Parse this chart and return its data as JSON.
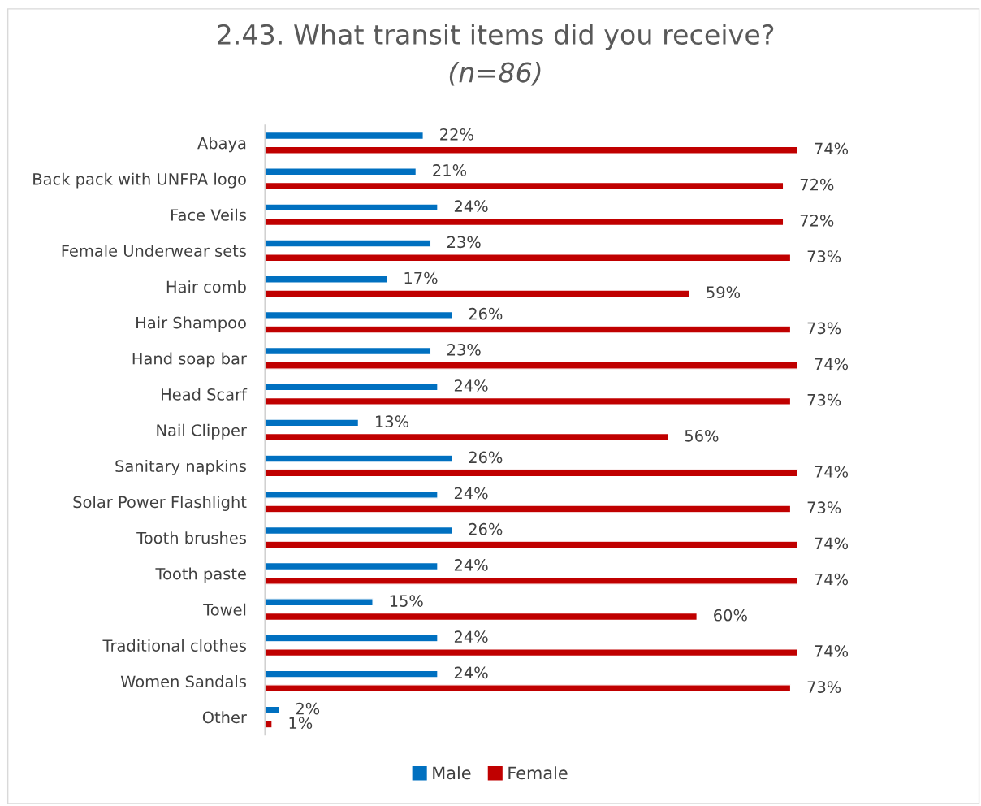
{
  "chart_data": {
    "type": "bar",
    "orientation": "horizontal",
    "title": "2.43. What transit items did you receive?",
    "subtitle": "(n=86)",
    "categories": [
      "Abaya",
      "Back pack with UNFPA logo",
      "Face Veils",
      "Female Underwear sets",
      "Hair comb",
      "Hair Shampoo",
      "Hand soap bar",
      "Head Scarf",
      "Nail Clipper",
      "Sanitary napkins",
      "Solar Power Flashlight",
      "Tooth brushes",
      "Tooth paste",
      "Towel",
      "Traditional clothes",
      "Women Sandals",
      "Other"
    ],
    "series": [
      {
        "name": "Male",
        "color": "#0070c0",
        "values": [
          22,
          21,
          24,
          23,
          17,
          26,
          23,
          24,
          13,
          26,
          24,
          26,
          24,
          15,
          24,
          24,
          2
        ],
        "value_labels": [
          "22%",
          "21%",
          "24%",
          "23%",
          "17%",
          "26%",
          "23%",
          "24%",
          "13%",
          "26%",
          "24%",
          "26%",
          "24%",
          "15%",
          "24%",
          "24%",
          "2%"
        ]
      },
      {
        "name": "Female",
        "color": "#c00000",
        "values": [
          74,
          72,
          72,
          73,
          59,
          73,
          74,
          73,
          56,
          74,
          73,
          74,
          74,
          60,
          74,
          73,
          1
        ],
        "value_labels": [
          "74%",
          "72%",
          "72%",
          "73%",
          "59%",
          "73%",
          "74%",
          "73%",
          "56%",
          "74%",
          "73%",
          "74%",
          "74%",
          "60%",
          "74%",
          "73%",
          "1%"
        ]
      }
    ],
    "legend": "bottom"
  }
}
